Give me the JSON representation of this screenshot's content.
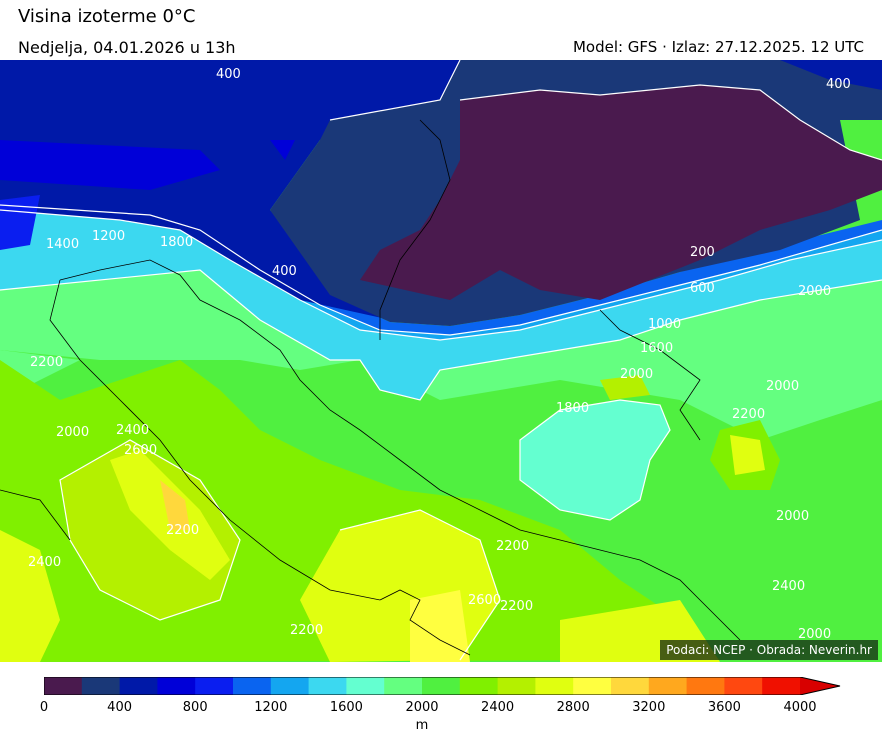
{
  "header": {
    "title": "Visina izoterme 0°C",
    "valid_time": "Nedjelja, 04.01.2026 u 13h",
    "model_run": "Model: GFS · Izlaz: 27.12.2025. 12 UTC"
  },
  "credit": "Podaci: NCEP · Obrada: Neverin.hr",
  "colorbar": {
    "unit": "m",
    "ticks": [
      "0",
      "400",
      "800",
      "1200",
      "1600",
      "2000",
      "2400",
      "2800",
      "3200",
      "3600",
      "4000"
    ],
    "colors": [
      "#4a1a4e",
      "#1a3878",
      "#0019a8",
      "#0000d8",
      "#0a1ef0",
      "#0a64f0",
      "#14a6f0",
      "#3cd8f0",
      "#64ffd0",
      "#64ff80",
      "#50f040",
      "#80f000",
      "#b4f000",
      "#e0ff10",
      "#ffff40",
      "#ffd83c",
      "#ffa81e",
      "#ff7810",
      "#ff4810",
      "#f01000",
      "#d80000"
    ]
  },
  "contour_labels": [
    "400",
    "400",
    "400",
    "1400",
    "1200",
    "1800",
    "200",
    "600",
    "1000",
    "1600",
    "2000",
    "2000",
    "2000",
    "2000",
    "2200",
    "2200",
    "2200",
    "2200",
    "2200",
    "2200",
    "2400",
    "2600",
    "2600",
    "2400",
    "2400",
    "2000",
    "2000",
    "1800"
  ]
}
